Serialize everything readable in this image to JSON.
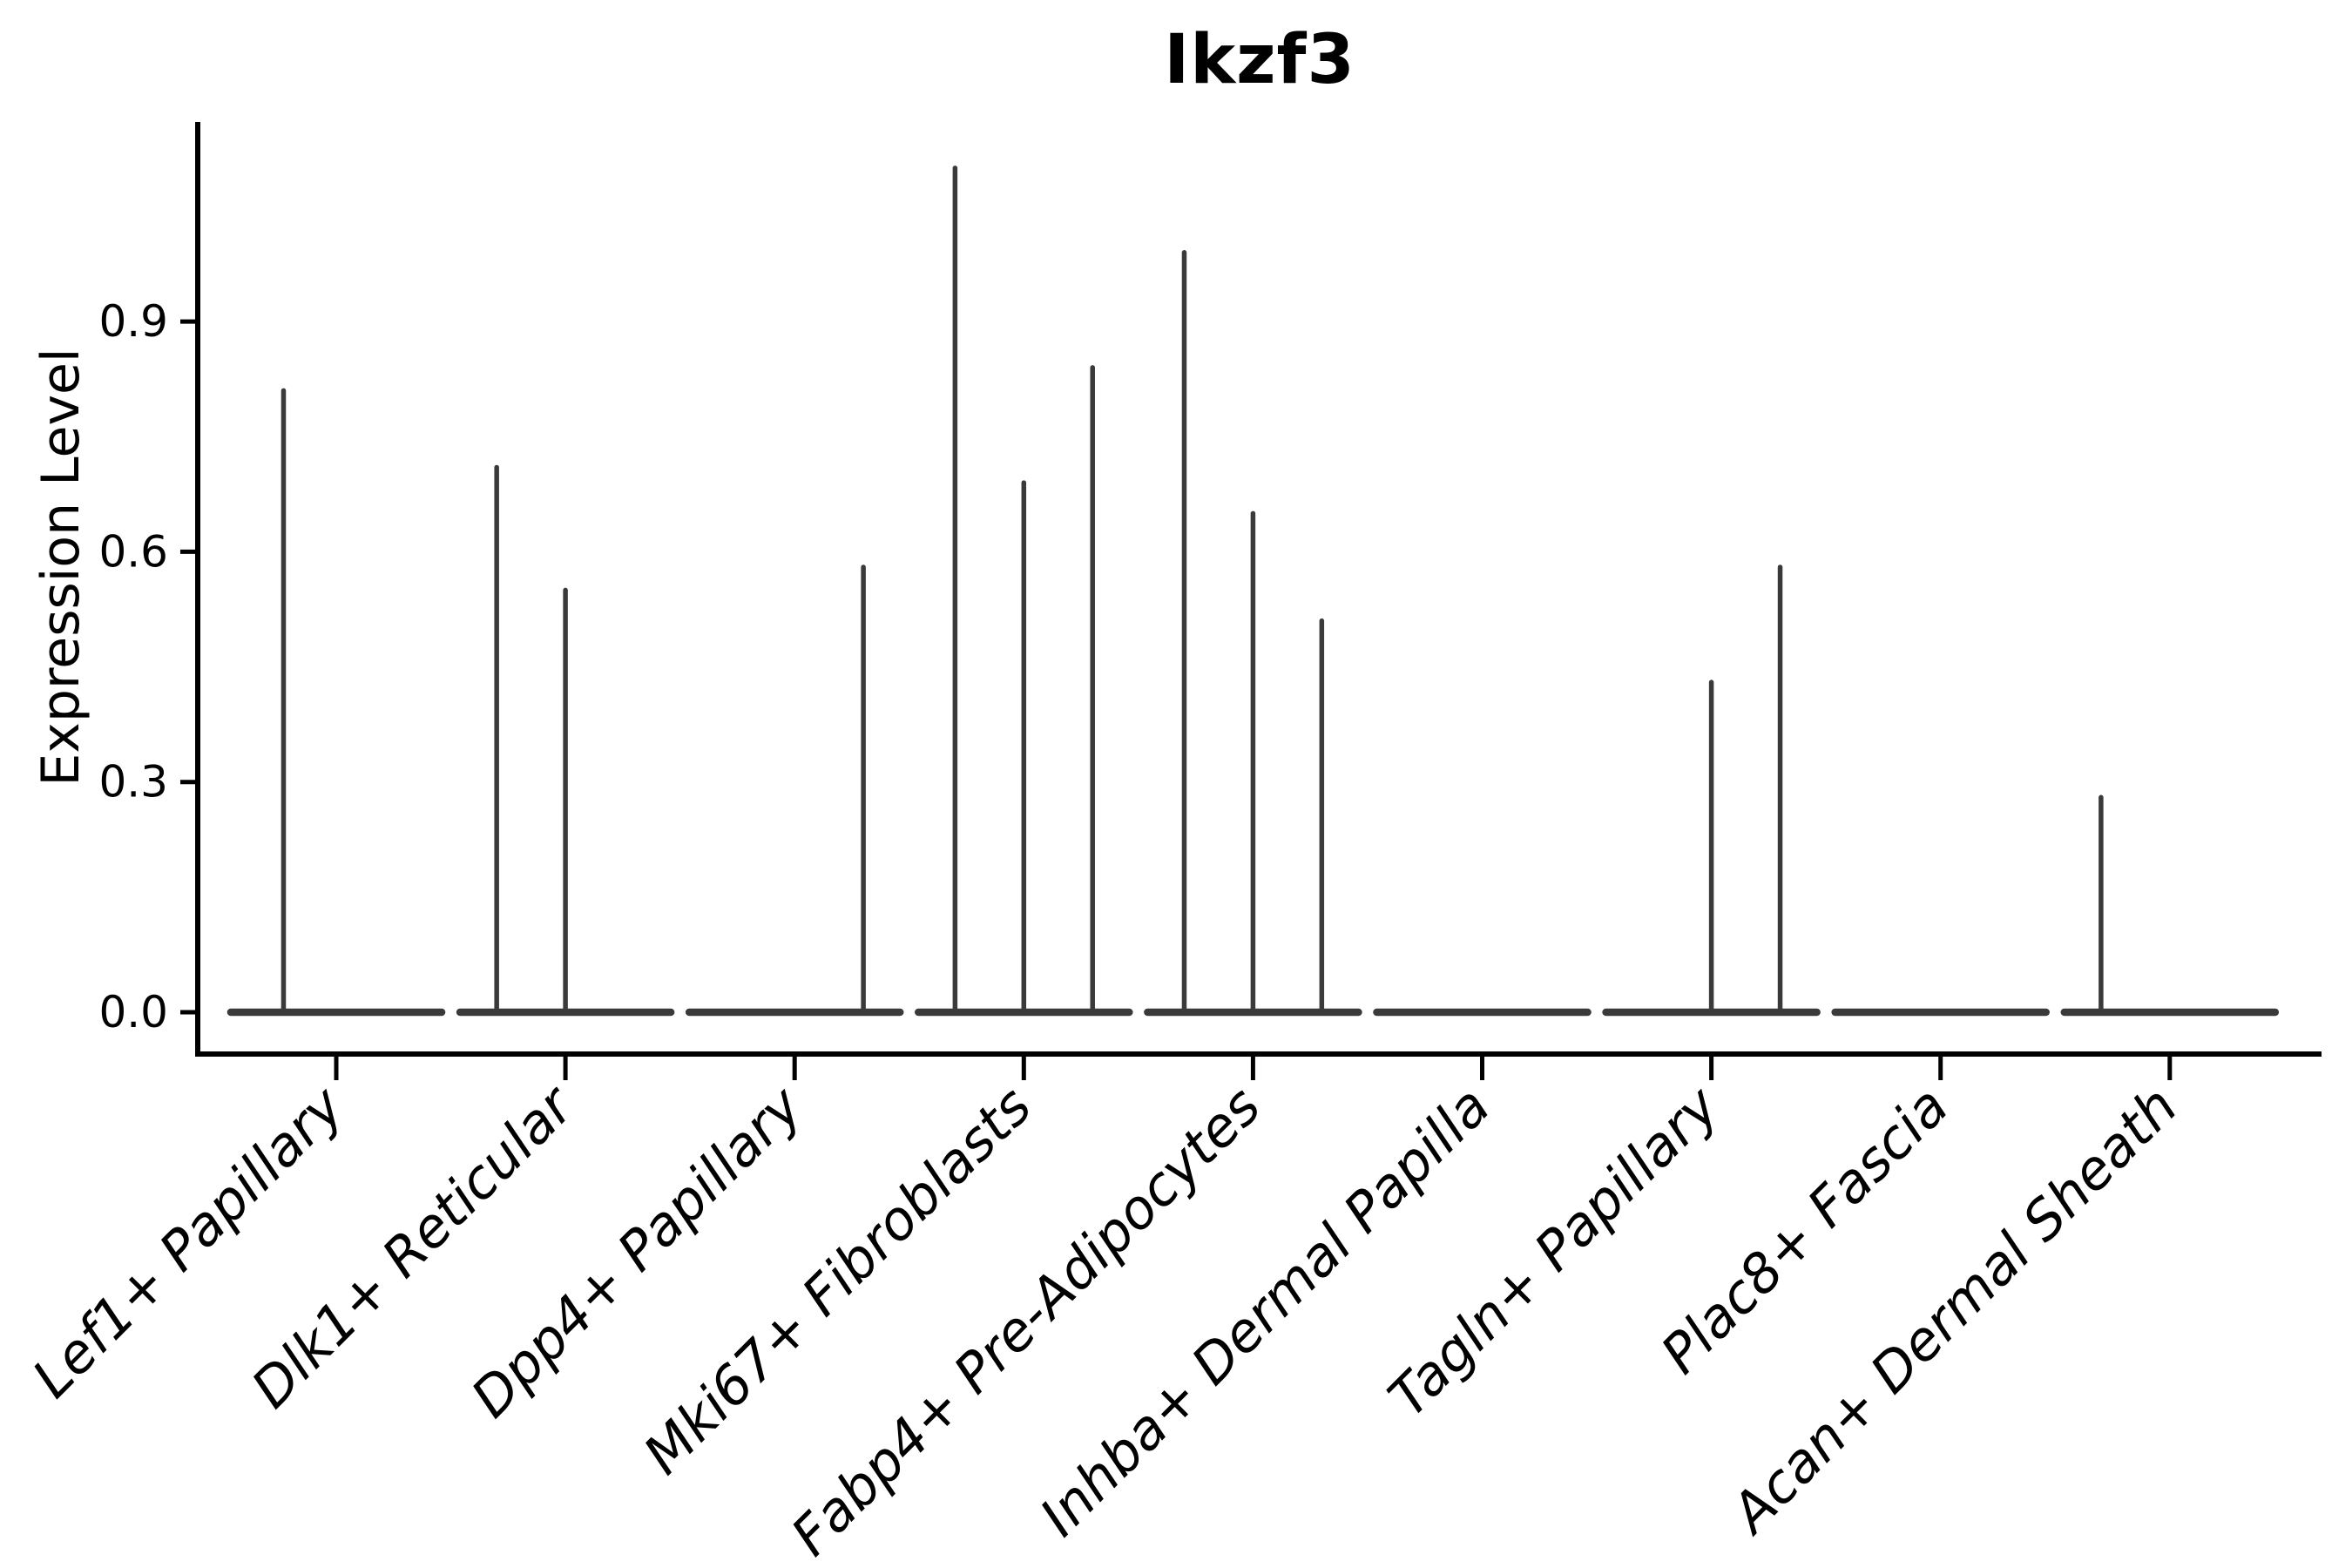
{
  "colors": {
    "background": "#ffffff",
    "axis": "#000000",
    "violin_stroke": "#3a3a3a",
    "text": "#000000"
  },
  "chart_data": {
    "type": "violin",
    "title": "Ikzf3",
    "ylabel": "Expression Level",
    "xlabel": "",
    "grid": false,
    "legend_position": "none",
    "ylim": [
      0,
      1.16
    ],
    "yticks": [
      {
        "value": 0.0,
        "label": "0.0"
      },
      {
        "value": 0.3,
        "label": "0.3"
      },
      {
        "value": 0.6,
        "label": "0.6"
      },
      {
        "value": 0.9,
        "label": "0.9"
      }
    ],
    "categories": [
      "Lef1+ Papillary",
      "Dlk1+ Reticular",
      "Dpp4+ Papillary",
      "Mki67+ Fibroblasts",
      "Fabp4+ Pre-Adipocytes",
      "Inhba+ Dermal Papilla",
      "Tagln+ Papillary",
      "Plac8+ Fascia",
      "Acan+ Dermal Sheath"
    ],
    "violins": [
      {
        "category": "Lef1+ Papillary",
        "zero_base_halfwidth": 0.46,
        "spikes": [
          {
            "offset": -0.23,
            "peak": 0.81
          }
        ]
      },
      {
        "category": "Dlk1+ Reticular",
        "zero_base_halfwidth": 0.46,
        "spikes": [
          {
            "offset": -0.3,
            "peak": 0.71
          },
          {
            "offset": 0.0,
            "peak": 0.55
          }
        ]
      },
      {
        "category": "Dpp4+ Papillary",
        "zero_base_halfwidth": 0.46,
        "spikes": [
          {
            "offset": 0.3,
            "peak": 0.58
          }
        ]
      },
      {
        "category": "Mki67+ Fibroblasts",
        "zero_base_halfwidth": 0.46,
        "spikes": [
          {
            "offset": -0.3,
            "peak": 1.1
          },
          {
            "offset": 0.0,
            "peak": 0.69
          },
          {
            "offset": 0.3,
            "peak": 0.84
          }
        ]
      },
      {
        "category": "Fabp4+ Pre-Adipocytes",
        "zero_base_halfwidth": 0.46,
        "spikes": [
          {
            "offset": -0.3,
            "peak": 0.99
          },
          {
            "offset": 0.0,
            "peak": 0.65
          },
          {
            "offset": 0.3,
            "peak": 0.51
          }
        ]
      },
      {
        "category": "Inhba+ Dermal Papilla",
        "zero_base_halfwidth": 0.46,
        "spikes": []
      },
      {
        "category": "Tagln+ Papillary",
        "zero_base_halfwidth": 0.46,
        "spikes": [
          {
            "offset": 0.0,
            "peak": 0.43
          },
          {
            "offset": 0.3,
            "peak": 0.58
          }
        ]
      },
      {
        "category": "Plac8+ Fascia",
        "zero_base_halfwidth": 0.46,
        "spikes": []
      },
      {
        "category": "Acan+ Dermal Sheath",
        "zero_base_halfwidth": 0.46,
        "spikes": [
          {
            "offset": -0.3,
            "peak": 0.28
          }
        ]
      }
    ]
  }
}
